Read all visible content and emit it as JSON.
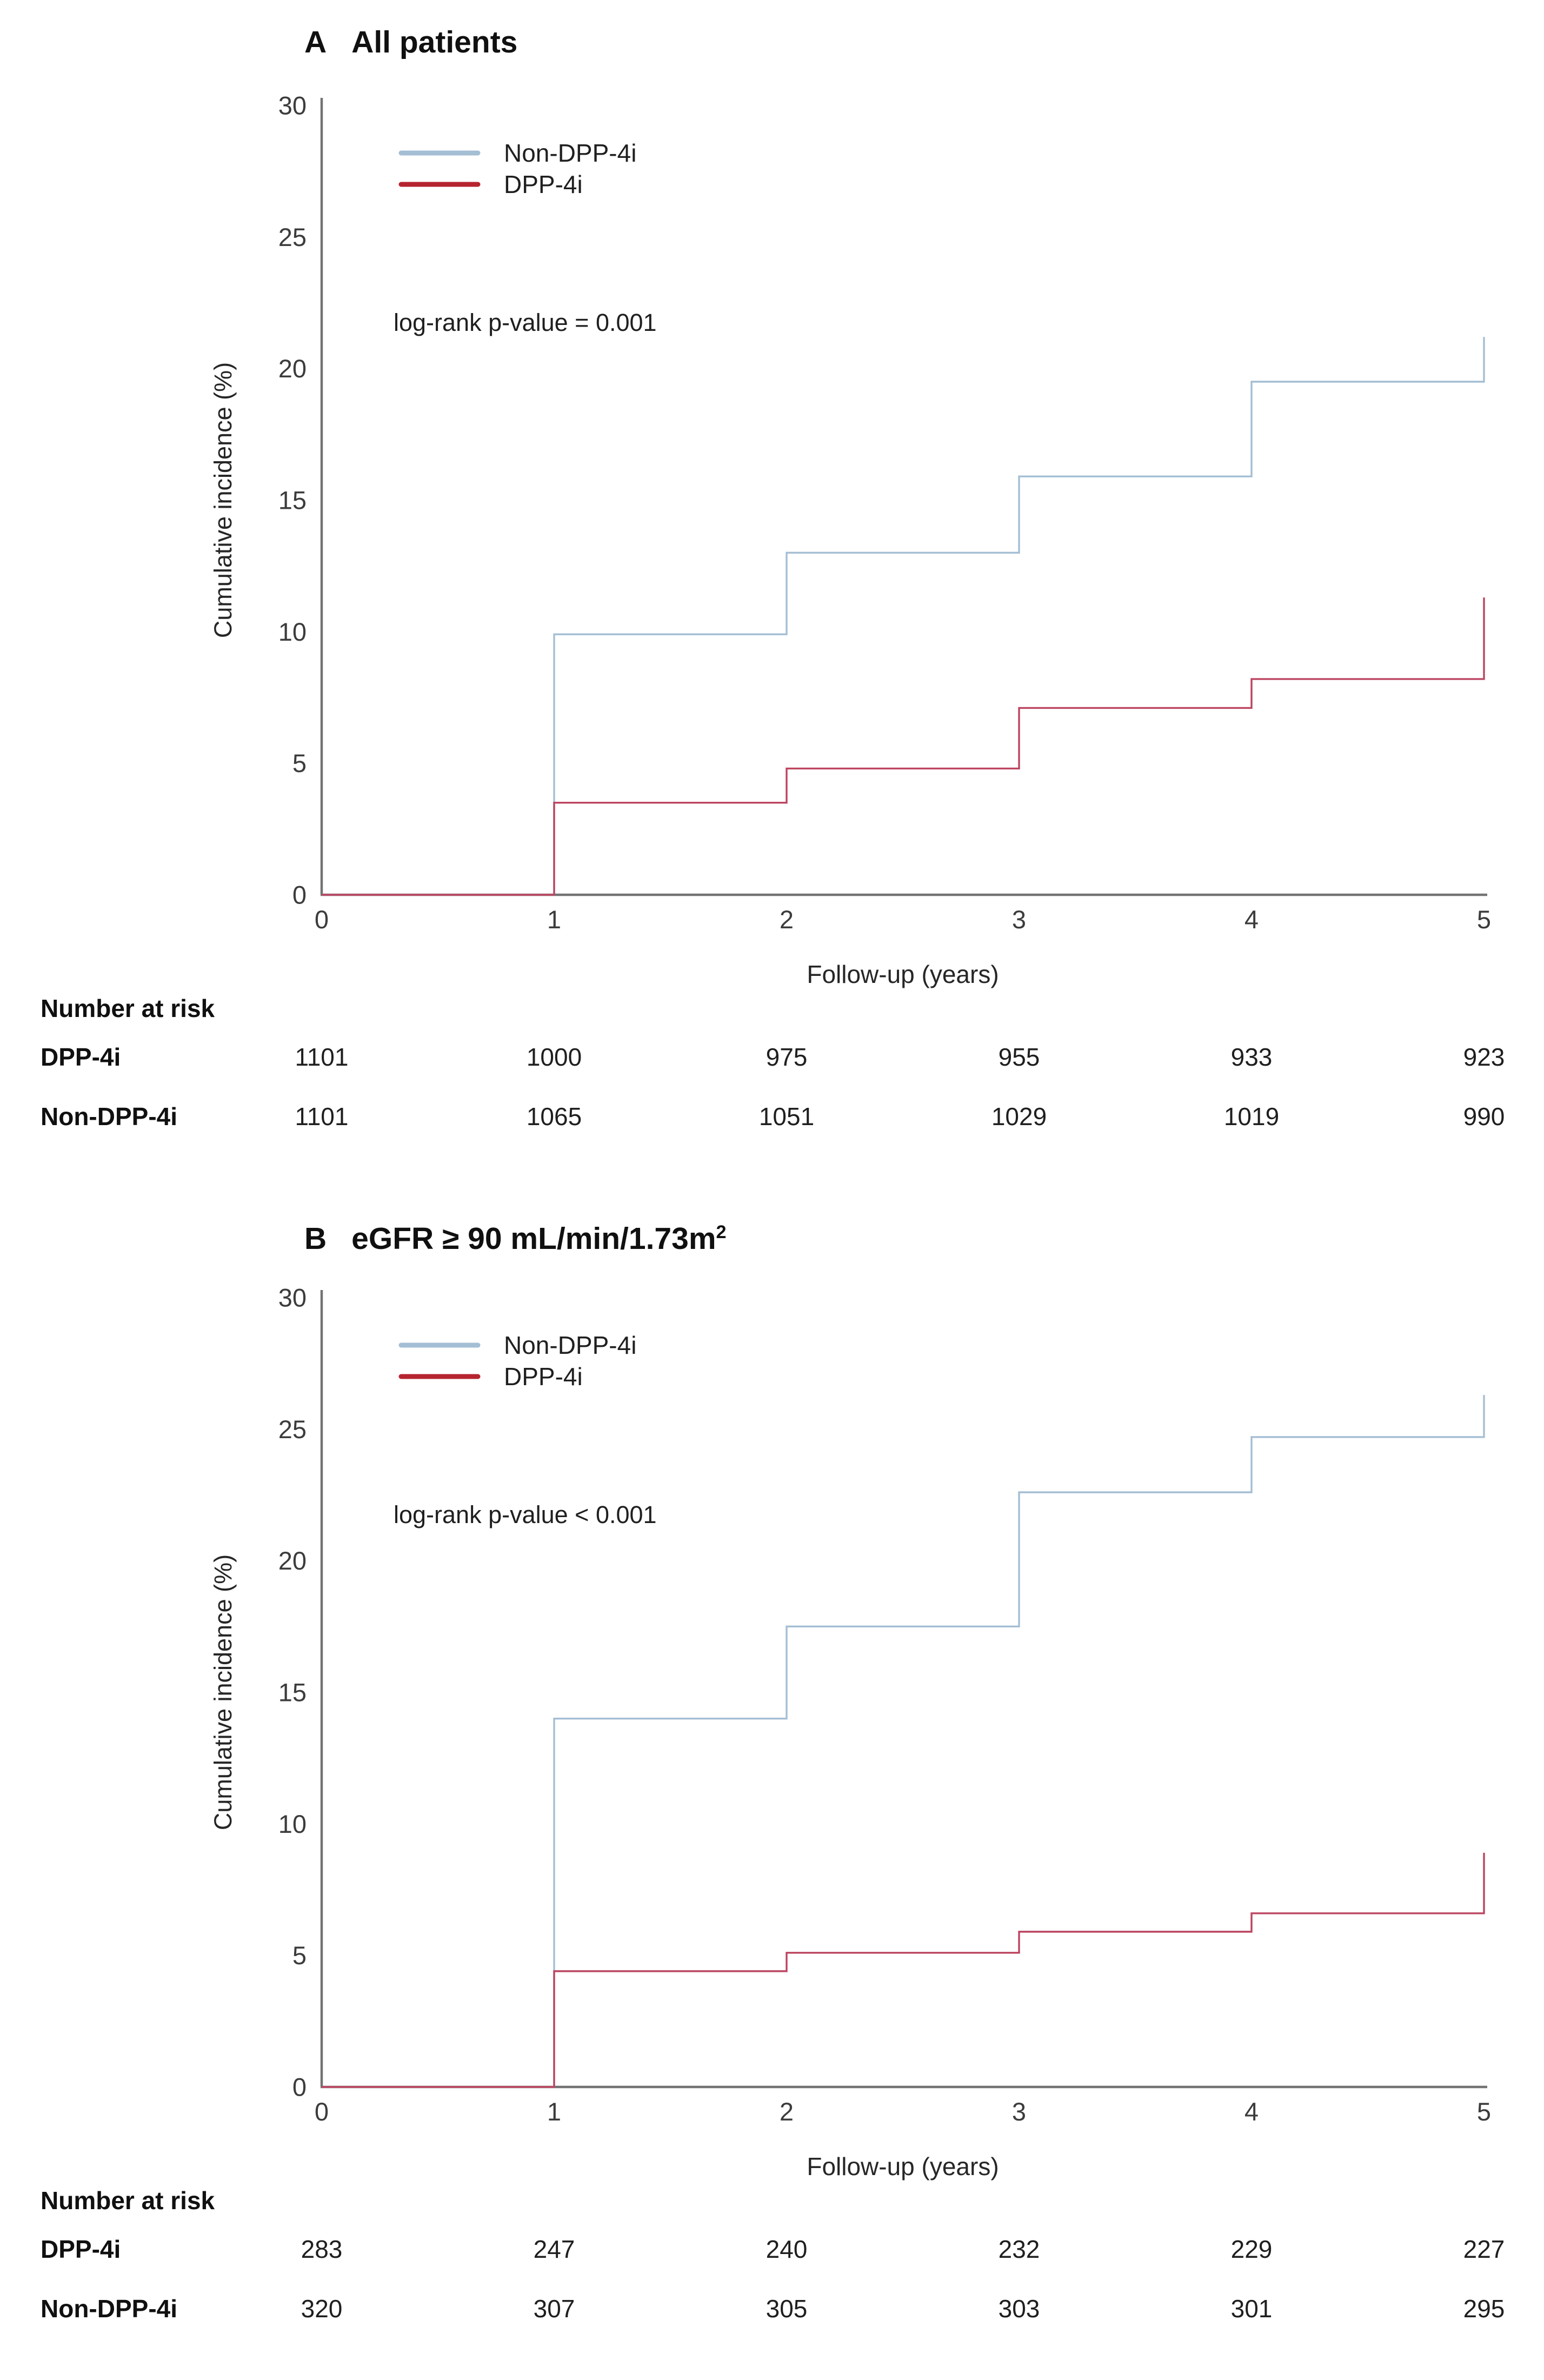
{
  "page": {
    "background": "#ffffff"
  },
  "colors": {
    "non_dpp4i": "#a4bed4",
    "dpp4i_curve": "#bc4560",
    "dpp4i_legend": "#b6242f",
    "axis": "#737373",
    "tick_text": "#3c3c3c",
    "text": "#1f1f1f"
  },
  "panels": [
    {
      "letter": "A",
      "title": "All patients",
      "title_sup": "",
      "pvalue": "log-rank p-value = 0.001"
    },
    {
      "letter": "B",
      "title": "eGFR ≥ 90 mL/min/1.73m",
      "title_sup": "2",
      "pvalue": "log-rank p-value < 0.001"
    }
  ],
  "chart_data": [
    {
      "type": "line",
      "step": true,
      "panel": "A",
      "title": "All patients",
      "xlabel": "Follow-up (years)",
      "ylabel": "Cumulative incidence (%)",
      "xlim": [
        0,
        5
      ],
      "ylim": [
        0,
        30
      ],
      "xticks": [
        0,
        1,
        2,
        3,
        4,
        5
      ],
      "yticks": [
        0,
        5,
        10,
        15,
        20,
        25,
        30
      ],
      "grid": false,
      "legend_position": "inside-top-left",
      "annotation": "log-rank p-value = 0.001",
      "series": [
        {
          "name": "Non-DPP-4i",
          "color": "#a4bed4",
          "legend_color": "#a4bed4",
          "x": [
            0,
            1,
            2,
            3,
            4,
            5
          ],
          "y": [
            0,
            9.9,
            13.0,
            15.9,
            19.5,
            21.2
          ]
        },
        {
          "name": "DPP-4i",
          "color": "#bc4560",
          "legend_color": "#b6242f",
          "x": [
            0,
            1,
            2,
            3,
            4,
            5
          ],
          "y": [
            0,
            3.5,
            4.8,
            7.1,
            8.2,
            11.3
          ]
        }
      ],
      "number_at_risk": {
        "header": "Number at risk",
        "time_points": [
          0,
          1,
          2,
          3,
          4,
          5
        ],
        "rows": [
          {
            "label": "DPP-4i",
            "values": [
              1101,
              1000,
              975,
              955,
              933,
              923
            ]
          },
          {
            "label": "Non-DPP-4i",
            "values": [
              1101,
              1065,
              1051,
              1029,
              1019,
              990
            ]
          }
        ]
      }
    },
    {
      "type": "line",
      "step": true,
      "panel": "B",
      "title": "eGFR ≥ 90 mL/min/1.73m²",
      "xlabel": "Follow-up (years)",
      "ylabel": "Cumulative incidence (%)",
      "xlim": [
        0,
        5
      ],
      "ylim": [
        0,
        30
      ],
      "xticks": [
        0,
        1,
        2,
        3,
        4,
        5
      ],
      "yticks": [
        0,
        5,
        10,
        15,
        20,
        25,
        30
      ],
      "grid": false,
      "legend_position": "inside-top-left",
      "annotation": "log-rank p-value < 0.001",
      "series": [
        {
          "name": "Non-DPP-4i",
          "color": "#a4bed4",
          "legend_color": "#a4bed4",
          "x": [
            0,
            1,
            2,
            3,
            4,
            5
          ],
          "y": [
            0,
            14.0,
            17.5,
            22.6,
            24.7,
            26.3
          ]
        },
        {
          "name": "DPP-4i",
          "color": "#bc4560",
          "legend_color": "#b6242f",
          "x": [
            0,
            1,
            2,
            3,
            4,
            5
          ],
          "y": [
            0,
            4.4,
            5.1,
            5.9,
            6.6,
            8.9
          ]
        }
      ],
      "number_at_risk": {
        "header": "Number at risk",
        "time_points": [
          0,
          1,
          2,
          3,
          4,
          5
        ],
        "rows": [
          {
            "label": "DPP-4i",
            "values": [
              283,
              247,
              240,
              232,
              229,
              227
            ]
          },
          {
            "label": "Non-DPP-4i",
            "values": [
              320,
              307,
              305,
              303,
              301,
              295
            ]
          }
        ]
      }
    }
  ]
}
